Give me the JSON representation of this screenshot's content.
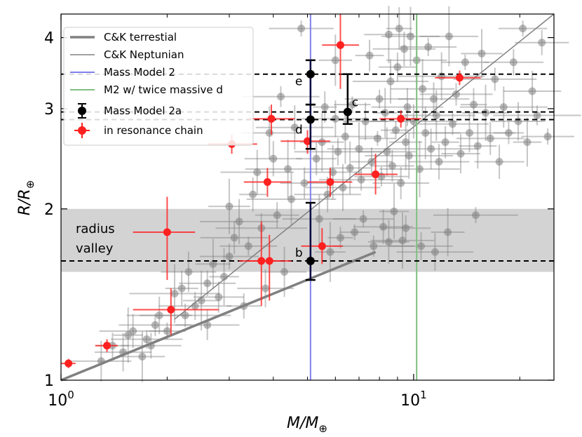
{
  "chart_data": {
    "type": "scatter",
    "xlabel": "M/M",
    "xlabel_sub": "⊕",
    "ylabel": "R/R",
    "ylabel_sub": "⊕",
    "xscale": "log",
    "yscale": "log",
    "xlim": [
      1.0,
      25.0
    ],
    "ylim": [
      1.0,
      4.4
    ],
    "x_ticks": [
      {
        "value": 1,
        "base": "10",
        "exp": "0"
      },
      {
        "value": 10,
        "base": "10",
        "exp": "1"
      }
    ],
    "y_ticks": [
      {
        "value": 1,
        "label": "1"
      },
      {
        "value": 2,
        "label": "2"
      },
      {
        "value": 3,
        "label": "3"
      },
      {
        "value": 4,
        "label": "4"
      }
    ],
    "legend": {
      "position": "top-left",
      "entries": [
        {
          "label": "C&K terrestial",
          "kind": "thick-line",
          "color": "#808080"
        },
        {
          "label": "C&K Neptunian",
          "kind": "thin-line",
          "color": "#808080"
        },
        {
          "label": "Mass Model 2",
          "kind": "line",
          "color": "#8080ee"
        },
        {
          "label": "M2 w/ twice massive d",
          "kind": "line",
          "color": "#7fbf7f"
        },
        {
          "label": "Mass Model 2a",
          "kind": "errorbar",
          "color": "#000000"
        },
        {
          "label": "in resonance chain",
          "kind": "errorbar",
          "color": "#ff2020"
        }
      ]
    },
    "radius_valley": {
      "label_line1": "radius",
      "label_line2": "valley",
      "y_range": [
        1.55,
        2.0
      ]
    },
    "vlines": [
      {
        "name": "Mass Model 2",
        "x": 5.1,
        "color": "#8080ee"
      },
      {
        "name": "M2 w/ twice massive d",
        "x": 10.2,
        "color": "#7fbf7f"
      }
    ],
    "hlines_dashed": [
      3.45,
      2.96,
      2.87,
      1.62
    ],
    "ck_terrestrial": {
      "x": [
        1.0,
        7.8
      ],
      "y": [
        1.0,
        1.68
      ],
      "color": "#808080"
    },
    "ck_neptunian": {
      "x": [
        2.1,
        25.0
      ],
      "y": [
        1.28,
        4.4
      ],
      "color": "#808080"
    },
    "mass_model_2a": [
      {
        "planet": "b",
        "x": 5.1,
        "y": 1.62,
        "yerr_low": 1.5,
        "yerr_high": 2.05
      },
      {
        "planet": "d",
        "x": 5.1,
        "y": 2.87,
        "yerr_low": 2.55,
        "yerr_high": 3.05
      },
      {
        "planet": "e",
        "x": 5.1,
        "y": 3.45,
        "yerr_low": 3.05,
        "yerr_high": 3.65
      },
      {
        "planet": "c",
        "x": 6.5,
        "y": 2.96,
        "yerr_low": 2.82,
        "yerr_high": 3.45
      }
    ],
    "resonance_chain": [
      {
        "x": 1.05,
        "y": 1.07,
        "xerr": [
          1.0,
          1.1
        ],
        "yerr": [
          1.05,
          1.09
        ]
      },
      {
        "x": 1.35,
        "y": 1.15,
        "xerr": [
          1.25,
          1.45
        ],
        "yerr": [
          1.12,
          1.18
        ]
      },
      {
        "x": 2.0,
        "y": 1.82,
        "xerr": [
          1.6,
          2.4
        ],
        "yerr": [
          1.5,
          2.1
        ]
      },
      {
        "x": 2.05,
        "y": 1.33,
        "xerr": [
          1.6,
          2.8
        ],
        "yerr": [
          1.2,
          1.45
        ]
      },
      {
        "x": 3.05,
        "y": 2.6,
        "xerr": [
          2.6,
          3.6
        ],
        "yerr": [
          2.5,
          2.7
        ]
      },
      {
        "x": 3.7,
        "y": 1.62,
        "xerr": [
          3.2,
          4.2
        ],
        "yerr": [
          1.35,
          1.9
        ]
      },
      {
        "x": 3.85,
        "y": 2.23,
        "xerr": [
          3.3,
          4.5
        ],
        "yerr": [
          2.1,
          2.36
        ]
      },
      {
        "x": 3.9,
        "y": 1.62,
        "xerr": [
          3.4,
          4.5
        ],
        "yerr": [
          1.38,
          1.8
        ]
      },
      {
        "x": 3.95,
        "y": 2.88,
        "xerr": [
          3.4,
          4.6
        ],
        "yerr": [
          2.7,
          3.05
        ]
      },
      {
        "x": 5.0,
        "y": 2.63,
        "xerr": [
          4.2,
          5.8
        ],
        "yerr": [
          2.5,
          2.75
        ]
      },
      {
        "x": 5.5,
        "y": 1.72,
        "xerr": [
          4.8,
          6.3
        ],
        "yerr": [
          1.6,
          1.85
        ]
      },
      {
        "x": 5.8,
        "y": 2.23,
        "xerr": [
          5.0,
          6.7
        ],
        "yerr": [
          2.1,
          2.36
        ]
      },
      {
        "x": 6.2,
        "y": 3.88,
        "xerr": [
          5.5,
          7.0
        ],
        "yerr": [
          3.25,
          4.4
        ]
      },
      {
        "x": 7.8,
        "y": 2.3,
        "xerr": [
          6.8,
          9.0
        ],
        "yerr": [
          2.12,
          2.5
        ]
      },
      {
        "x": 9.2,
        "y": 2.88,
        "xerr": [
          8.0,
          10.5
        ],
        "yerr": [
          2.78,
          2.98
        ]
      },
      {
        "x": 13.5,
        "y": 3.4,
        "xerr": [
          11.5,
          15.5
        ],
        "yerr": [
          3.3,
          3.5
        ]
      }
    ],
    "other_planets": [
      [
        1.3,
        1.08
      ],
      [
        1.4,
        1.15
      ],
      [
        1.5,
        1.12
      ],
      [
        1.55,
        1.2
      ],
      [
        1.6,
        1.22
      ],
      [
        1.7,
        1.1
      ],
      [
        1.75,
        1.18
      ],
      [
        1.8,
        1.15
      ],
      [
        1.85,
        1.25
      ],
      [
        1.9,
        1.3
      ],
      [
        2.0,
        1.22
      ],
      [
        2.1,
        1.42
      ],
      [
        2.2,
        1.45
      ],
      [
        2.25,
        1.3
      ],
      [
        2.3,
        1.55
      ],
      [
        2.4,
        1.35
      ],
      [
        2.5,
        1.38
      ],
      [
        2.6,
        1.48
      ],
      [
        2.6,
        1.25
      ],
      [
        2.7,
        1.6
      ],
      [
        2.8,
        1.4
      ],
      [
        2.9,
        1.52
      ],
      [
        3.0,
        2.02
      ],
      [
        3.0,
        1.65
      ],
      [
        3.1,
        1.78
      ],
      [
        3.2,
        1.9
      ],
      [
        3.3,
        1.35
      ],
      [
        3.4,
        1.72
      ],
      [
        3.5,
        2.12
      ],
      [
        3.6,
        2.32
      ],
      [
        3.7,
        1.85
      ],
      [
        3.8,
        1.45
      ],
      [
        3.9,
        2.72
      ],
      [
        4.0,
        2.45
      ],
      [
        4.1,
        1.95
      ],
      [
        4.2,
        3.15
      ],
      [
        4.3,
        1.55
      ],
      [
        4.4,
        2.35
      ],
      [
        4.5,
        2.08
      ],
      [
        4.6,
        2.78
      ],
      [
        4.8,
        4.15
      ],
      [
        4.9,
        2.22
      ],
      [
        5.3,
        2.45
      ],
      [
        5.4,
        1.92
      ],
      [
        5.5,
        2.62
      ],
      [
        5.6,
        3.02
      ],
      [
        5.7,
        2.12
      ],
      [
        5.8,
        1.68
      ],
      [
        5.9,
        2.32
      ],
      [
        6.0,
        2.88
      ],
      [
        6.0,
        3.65
      ],
      [
        6.1,
        2.52
      ],
      [
        6.2,
        1.78
      ],
      [
        6.3,
        2.18
      ],
      [
        6.4,
        2.68
      ],
      [
        6.6,
        2.36
      ],
      [
        6.7,
        3.05
      ],
      [
        6.8,
        1.82
      ],
      [
        7.0,
        2.55
      ],
      [
        7.1,
        2.25
      ],
      [
        7.2,
        1.92
      ],
      [
        7.3,
        2.85
      ],
      [
        7.5,
        3.72
      ],
      [
        7.6,
        2.42
      ],
      [
        7.7,
        1.72
      ],
      [
        7.9,
        2.66
      ],
      [
        8.0,
        3.12
      ],
      [
        8.1,
        2.28
      ],
      [
        8.2,
        1.86
      ],
      [
        8.3,
        2.95
      ],
      [
        8.4,
        2.52
      ],
      [
        8.5,
        4.05
      ],
      [
        8.6,
        3.35
      ],
      [
        8.7,
        2.38
      ],
      [
        8.8,
        1.98
      ],
      [
        8.9,
        2.75
      ],
      [
        9.0,
        3.55
      ],
      [
        9.1,
        4.15
      ],
      [
        9.2,
        2.22
      ],
      [
        9.3,
        1.76
      ],
      [
        9.4,
        3.82
      ],
      [
        9.5,
        2.62
      ],
      [
        9.6,
        3.02
      ],
      [
        9.7,
        2.48
      ],
      [
        9.8,
        4.02
      ],
      [
        10.0,
        2.85
      ],
      [
        10.2,
        3.65
      ],
      [
        10.4,
        2.35
      ],
      [
        10.6,
        3.25
      ],
      [
        10.8,
        2.72
      ],
      [
        11.0,
        3.85
      ],
      [
        11.2,
        2.55
      ],
      [
        11.4,
        3.12
      ],
      [
        11.6,
        2.92
      ],
      [
        11.8,
        2.42
      ],
      [
        12.0,
        3.42
      ],
      [
        12.3,
        2.62
      ],
      [
        12.6,
        4.02
      ],
      [
        12.9,
        2.82
      ],
      [
        13.2,
        3.18
      ],
      [
        13.6,
        2.5
      ],
      [
        14.0,
        3.62
      ],
      [
        14.4,
        2.72
      ],
      [
        14.8,
        3.05
      ],
      [
        15.2,
        2.58
      ],
      [
        15.6,
        3.75
      ],
      [
        16.0,
        2.95
      ],
      [
        16.5,
        2.66
      ],
      [
        17.0,
        3.38
      ],
      [
        17.5,
        2.42
      ],
      [
        18.0,
        3.02
      ],
      [
        18.6,
        2.72
      ],
      [
        19.2,
        3.62
      ],
      [
        19.8,
        2.85
      ],
      [
        20.4,
        4.15
      ],
      [
        21.0,
        2.62
      ],
      [
        21.7,
        3.22
      ],
      [
        22.4,
        2.92
      ],
      [
        23.1,
        3.92
      ],
      [
        24.0,
        2.68
      ],
      [
        12.5,
        1.82
      ],
      [
        15.0,
        1.95
      ],
      [
        10.5,
        1.72
      ],
      [
        9.5,
        1.85
      ],
      [
        11.5,
        1.68
      ],
      [
        8.5,
        1.75
      ]
    ]
  }
}
